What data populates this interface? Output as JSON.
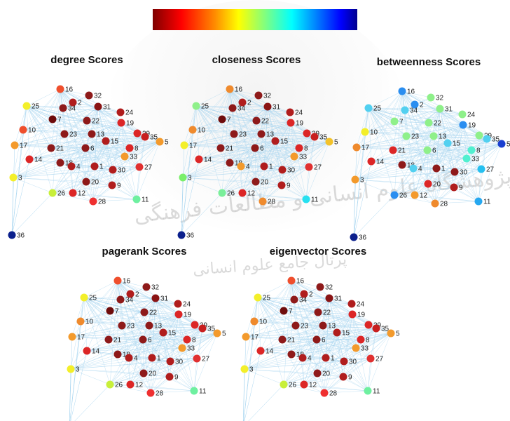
{
  "watermark": {
    "line1": "پژوهشگاه علوم انسانی و مطالعات فرهنگی",
    "line2": "پرتال جامع علوم انسانی"
  },
  "colorbar": {
    "stops": [
      "#7f0000",
      "#ff0000",
      "#ff8800",
      "#ffff00",
      "#80ff80",
      "#00ffff",
      "#0080ff",
      "#0000ff",
      "#00008f"
    ]
  },
  "edge_color": "#a9d6f0",
  "nodes": [
    "16",
    "32",
    "2",
    "31",
    "34",
    "24",
    "25",
    "7",
    "22",
    "19",
    "10",
    "29",
    "35",
    "23",
    "13",
    "15",
    "17",
    "21",
    "6",
    "8",
    "33",
    "5",
    "14",
    "18",
    "4",
    "1",
    "30",
    "27",
    "3",
    "20",
    "9",
    "26",
    "12",
    "11",
    "28",
    "36"
  ],
  "panels": [
    {
      "title": "degree Scores",
      "colors": [
        "#ef4f2d",
        "#8e1a1a",
        "#b01d1d",
        "#8a1414",
        "#8e1a1a",
        "#b01d1d",
        "#f3ef2a",
        "#6e0c0c",
        "#8e1a1a",
        "#dc2626",
        "#ef4f2d",
        "#dc2626",
        "#c81f1f",
        "#8e1a1a",
        "#8e1a1a",
        "#b01d1d",
        "#f39a2c",
        "#8e1a1a",
        "#8e1a1a",
        "#dc2626",
        "#f39a2c",
        "#f39a2c",
        "#dc2626",
        "#8e1a1a",
        "#b01d1d",
        "#b01d1d",
        "#b01d1d",
        "#e03030",
        "#f3ef2a",
        "#8e1a1a",
        "#b01d1d",
        "#c8ef3a",
        "#dc2626",
        "#6ef0a0",
        "#ef3030",
        "#0a1f8c"
      ]
    },
    {
      "title": "closeness Scores",
      "colors": [
        "#ef8a2d",
        "#8e1a1a",
        "#b01d1d",
        "#8a1414",
        "#8e1a1a",
        "#b01d1d",
        "#8ff08a",
        "#6e0c0c",
        "#8e1a1a",
        "#dc2626",
        "#ef8a2d",
        "#dc2626",
        "#c81f1f",
        "#8e1a1a",
        "#8e1a1a",
        "#b01d1d",
        "#f3ef2a",
        "#8e1a1a",
        "#8e1a1a",
        "#dc2626",
        "#f39a2c",
        "#f3c22a",
        "#dc2626",
        "#8e1a1a",
        "#f39a2c",
        "#b01d1d",
        "#b01d1d",
        "#e03030",
        "#7aef6a",
        "#8e1a1a",
        "#b01d1d",
        "#7aef9a",
        "#dc2626",
        "#26e0f0",
        "#ef8a2d",
        "#0a1f8c"
      ]
    },
    {
      "title": "betweenness Scores",
      "colors": [
        "#2a8ef0",
        "#8ff08a",
        "#2a8ef0",
        "#8ff08a",
        "#52d0f0",
        "#8ff08a",
        "#52d0f0",
        "#8ff08a",
        "#8ff08a",
        "#2a8ef0",
        "#f3ef2a",
        "#8ff08a",
        "#52d0f0",
        "#8ff08a",
        "#8ff08a",
        "#52d0f0",
        "#ef8a2d",
        "#dc2626",
        "#8ff08a",
        "#52f0d0",
        "#52f0d0",
        "#1a3fd0",
        "#dc2626",
        "#8e1a1a",
        "#52d0f0",
        "#8e1a1a",
        "#8e1a1a",
        "#26c0f0",
        "#f39a2c",
        "#dc2626",
        "#b01d1d",
        "#2a8ef0",
        "#f39a2c",
        "#26a8f0",
        "#ef8a2d",
        "#0a1f8c"
      ]
    },
    {
      "title": "pagerank Scores",
      "colors": [
        "#ef4f2d",
        "#8e1a1a",
        "#b01d1d",
        "#8a1414",
        "#8e1a1a",
        "#b01d1d",
        "#f3ef2a",
        "#6e0c0c",
        "#8e1a1a",
        "#dc2626",
        "#ef8a2d",
        "#dc2626",
        "#c81f1f",
        "#8e1a1a",
        "#8e1a1a",
        "#b01d1d",
        "#f39a2c",
        "#8e1a1a",
        "#8e1a1a",
        "#dc2626",
        "#f39a2c",
        "#f39a2c",
        "#dc2626",
        "#8e1a1a",
        "#b01d1d",
        "#b01d1d",
        "#b01d1d",
        "#e03030",
        "#f3ef2a",
        "#8e1a1a",
        "#b01d1d",
        "#c8ef3a",
        "#dc2626",
        "#6ef0a0",
        "#ef3030",
        "#0a1f8c"
      ]
    },
    {
      "title": "eigenvector Scores",
      "colors": [
        "#ef4f2d",
        "#8e1a1a",
        "#b01d1d",
        "#8a1414",
        "#8e1a1a",
        "#b01d1d",
        "#f3ef2a",
        "#6e0c0c",
        "#8e1a1a",
        "#dc2626",
        "#ef8a2d",
        "#dc2626",
        "#c81f1f",
        "#8e1a1a",
        "#8e1a1a",
        "#b01d1d",
        "#f39a2c",
        "#8e1a1a",
        "#8e1a1a",
        "#dc2626",
        "#f39a2c",
        "#f39a2c",
        "#dc2626",
        "#8e1a1a",
        "#b01d1d",
        "#b01d1d",
        "#b01d1d",
        "#e03030",
        "#f3ef2a",
        "#8e1a1a",
        "#b01d1d",
        "#c8ef3a",
        "#dc2626",
        "#6ef0a0",
        "#ef3030",
        "#0a1f8c"
      ]
    }
  ]
}
